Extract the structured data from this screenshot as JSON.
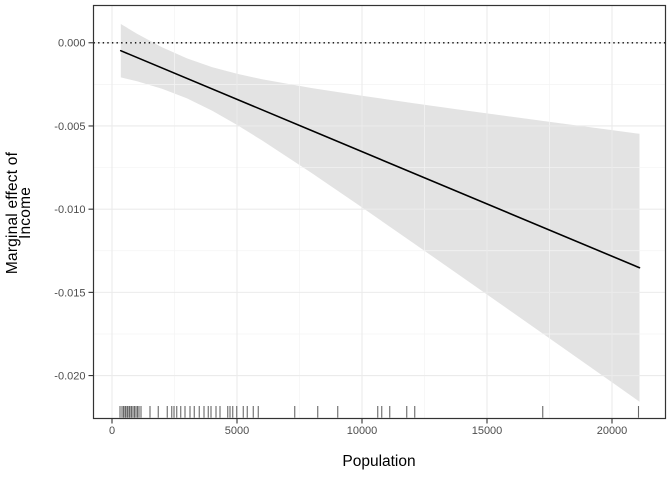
{
  "chart_data": {
    "type": "line",
    "title": "",
    "xlabel": "Population",
    "ylabel_line1": "Marginal effect of",
    "ylabel_line2": "Income",
    "legend": null,
    "grid": true,
    "x_axis": {
      "min": -740,
      "max": 22140,
      "ticks": [
        0,
        5000,
        10000,
        15000,
        20000
      ],
      "tick_labels": [
        "0",
        "5000",
        "10000",
        "15000",
        "20000"
      ],
      "minor_ticks": [
        2500,
        7500,
        12500,
        17500
      ]
    },
    "y_axis": {
      "min": -0.02258,
      "max": 0.00224,
      "ticks": [
        0,
        -0.005,
        -0.01,
        -0.015,
        -0.02
      ],
      "tick_labels": [
        "0.000",
        "-0.005",
        "-0.010",
        "-0.015",
        "-0.020"
      ],
      "minor_ticks": [
        -0.0025,
        -0.0075,
        -0.0125,
        -0.0175
      ]
    },
    "reference_line": {
      "y": 0,
      "style": "dotted"
    },
    "effect_line": {
      "x": [
        350,
        21100
      ],
      "y": [
        -0.000476,
        -0.013519
      ]
    },
    "confidence_band": {
      "x": [
        350,
        1000,
        2000,
        3000,
        4000,
        5000,
        6000,
        8000,
        10000,
        12000,
        14000,
        16000,
        18000,
        20000,
        21100
      ],
      "upper": [
        0.001129,
        0.000548,
        -0.000264,
        -0.000939,
        -0.001461,
        -0.001864,
        -0.00219,
        -0.002724,
        -0.003188,
        -0.003621,
        -0.004038,
        -0.004448,
        -0.004851,
        -0.00525,
        -0.005468
      ],
      "lower": [
        -0.002081,
        -0.002318,
        -0.002762,
        -0.003345,
        -0.004079,
        -0.004934,
        -0.005866,
        -0.007846,
        -0.009896,
        -0.011977,
        -0.014074,
        -0.01618,
        -0.018291,
        -0.020406,
        -0.02157
      ]
    },
    "rug_x": [
      320,
      400,
      460,
      520,
      560,
      620,
      680,
      720,
      780,
      840,
      900,
      960,
      1020,
      1080,
      1160,
      1520,
      1850,
      2210,
      2390,
      2480,
      2590,
      2750,
      2920,
      3120,
      3290,
      3490,
      3680,
      3850,
      3960,
      4160,
      4320,
      4630,
      4720,
      4830,
      4990,
      5250,
      5410,
      5650,
      5850,
      7310,
      8230,
      9030,
      10630,
      10790,
      11110,
      11790,
      12110,
      17230,
      21060
    ],
    "colors": {
      "effect_line": "#000000",
      "reference_line": "#000000",
      "band_fill": "#e3e3e3",
      "grid_major": "#ebebeb",
      "grid_minor": "#f4f4f4",
      "panel_border": "#333333",
      "axis_tick": "#333333",
      "tick_label": "#4d4d4d",
      "axis_title": "#000000",
      "rug": "#4d4d4d",
      "background": "#ffffff"
    }
  }
}
